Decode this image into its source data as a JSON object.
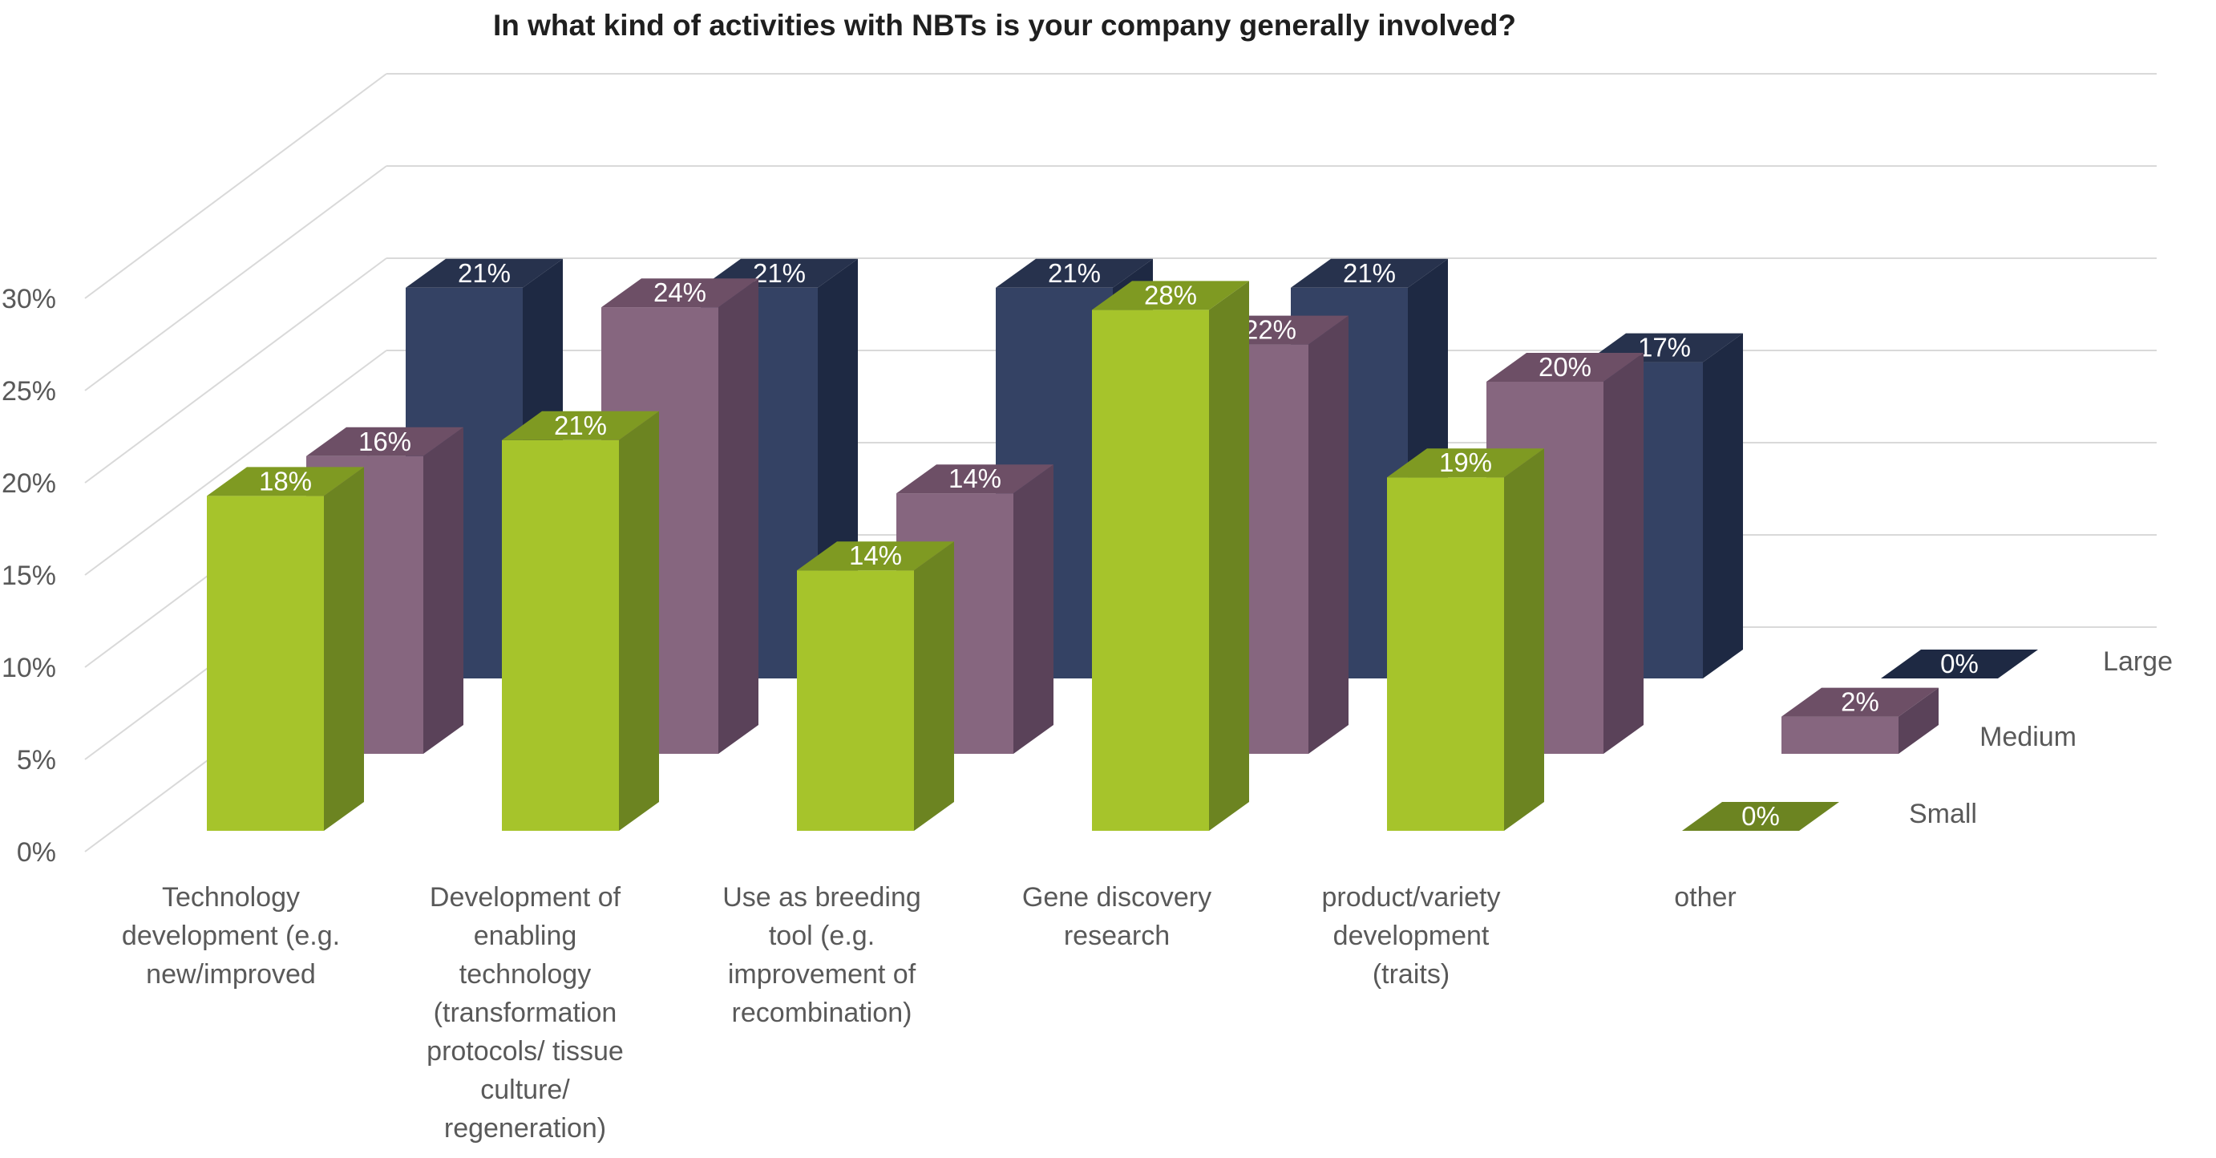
{
  "chart_data": {
    "type": "bar",
    "title": "In what kind of activities with NBTs is your company generally involved?",
    "xlabel": "",
    "ylabel": "",
    "ylim": [
      0,
      30
    ],
    "yticks": [
      "0%",
      "5%",
      "10%",
      "15%",
      "20%",
      "25%",
      "30%"
    ],
    "grid": true,
    "categories": [
      [
        "Technology",
        "development (e.g.",
        "new/improved"
      ],
      [
        "Development of",
        "enabling",
        "technology",
        "(transformation",
        "protocols/ tissue",
        "culture/",
        "regeneration)"
      ],
      [
        "Use as breeding",
        "tool (e.g.",
        "improvement of",
        "recombination)"
      ],
      [
        "Gene discovery",
        "research"
      ],
      [
        "product/variety",
        "development",
        "(traits)"
      ],
      [
        "other"
      ]
    ],
    "series": [
      {
        "name": "Large",
        "values": [
          21,
          21,
          21,
          21,
          17,
          0
        ],
        "labels": [
          "21%",
          "21%",
          "21%",
          "21%",
          "17%",
          "0%"
        ],
        "color": "#344264"
      },
      {
        "name": "Medium",
        "values": [
          16,
          24,
          14,
          22,
          20,
          2
        ],
        "labels": [
          "16%",
          "24%",
          "14%",
          "22%",
          "20%",
          "2%"
        ],
        "color": "#86667f"
      },
      {
        "name": "Small",
        "values": [
          18,
          21,
          14,
          28,
          19,
          0
        ],
        "labels": [
          "18%",
          "21%",
          "14%",
          "28%",
          "19%",
          "0%"
        ],
        "color": "#a6c42b"
      }
    ],
    "palette": {
      "large": {
        "front": "#344264",
        "side": "#1e2943",
        "top": "#27324d"
      },
      "medium": {
        "front": "#86667f",
        "side": "#5a4259",
        "top": "#6d4f66"
      },
      "small": {
        "front": "#a6c42b",
        "side": "#6c8421",
        "top": "#7f9a22"
      },
      "grid": "#d9d9d9",
      "text": "#595959"
    }
  }
}
